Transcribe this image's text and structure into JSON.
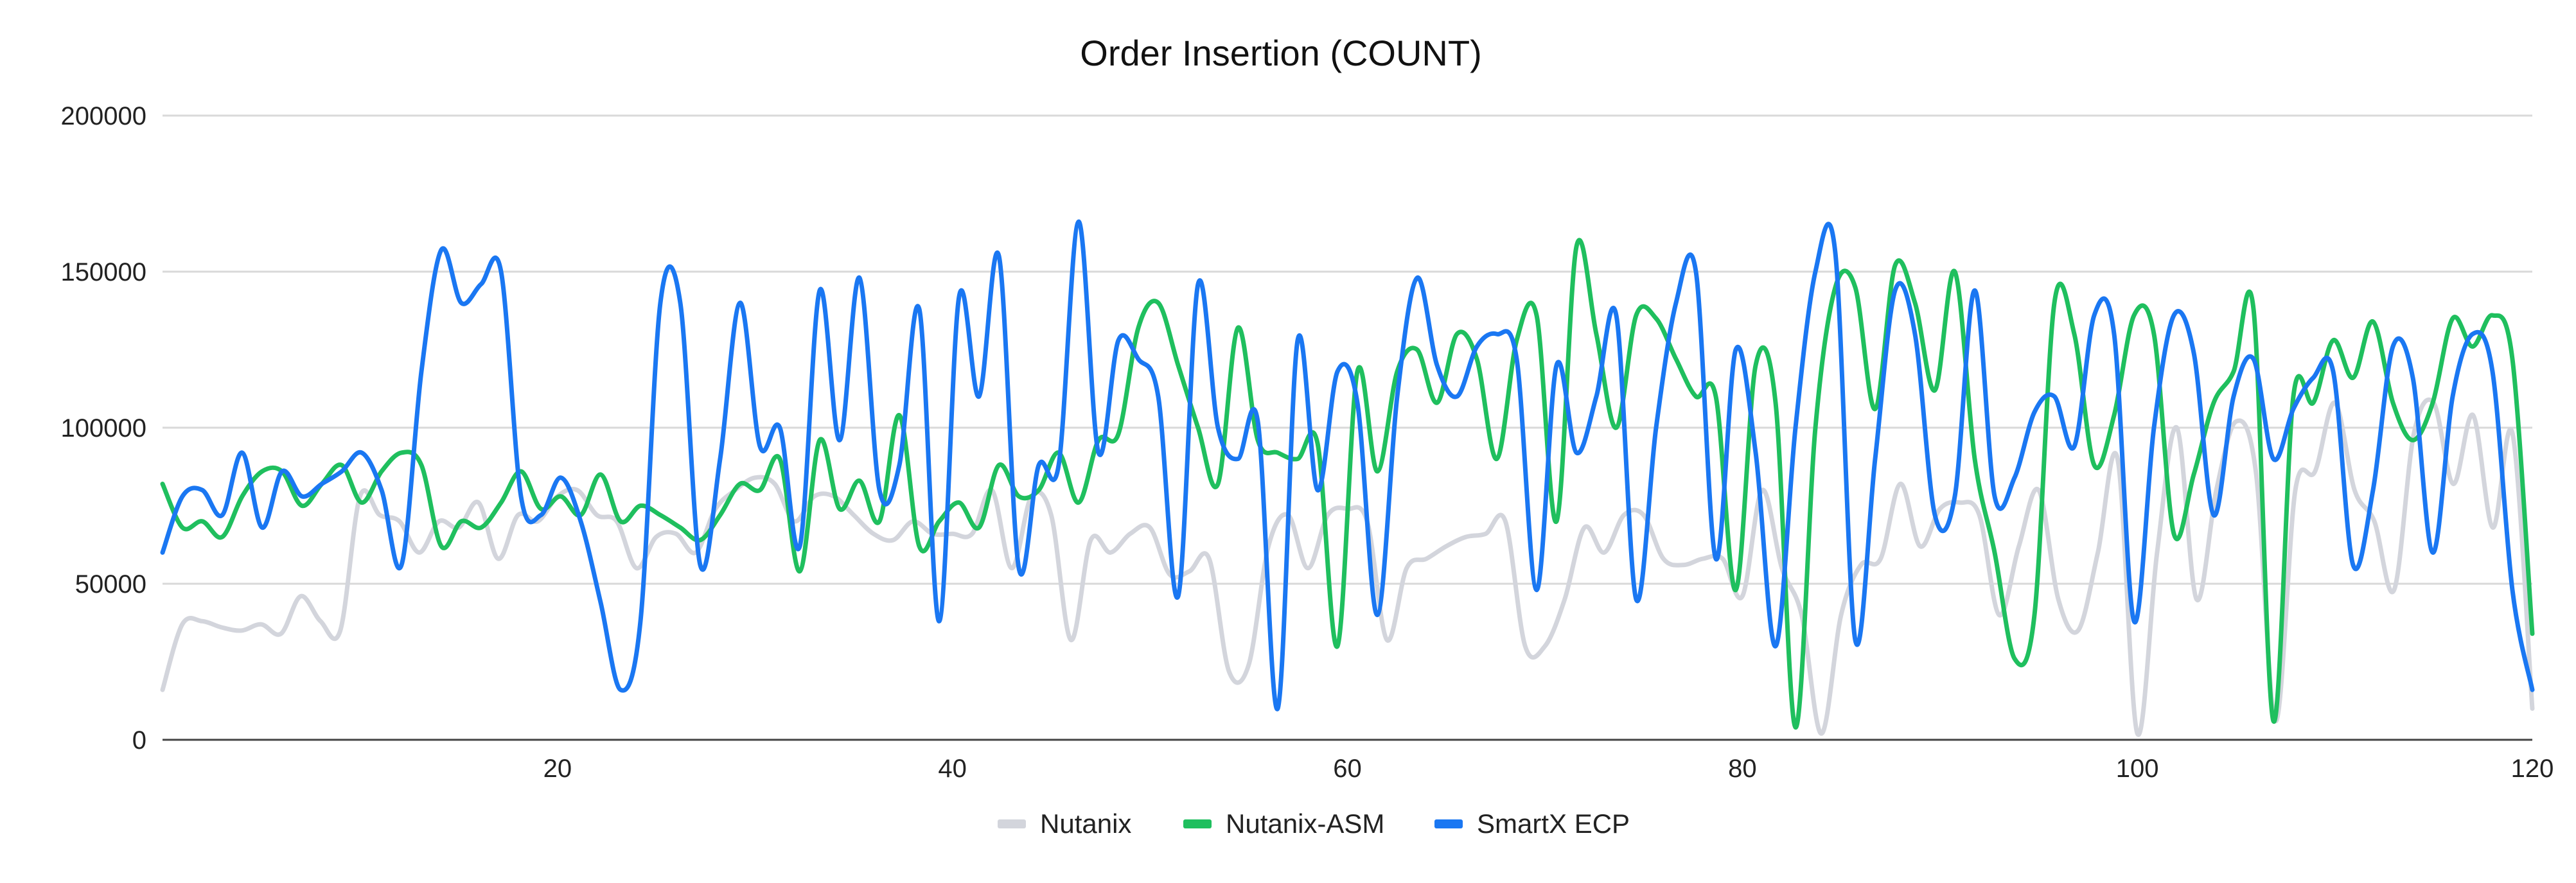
{
  "chart_data": {
    "type": "line",
    "title": "Order Insertion (COUNT)",
    "xlabel": "",
    "ylabel": "",
    "xlim": [
      0,
      120
    ],
    "ylim": [
      0,
      200000
    ],
    "x_ticks": [
      20,
      40,
      60,
      80,
      100,
      120
    ],
    "y_ticks": [
      0,
      50000,
      100000,
      150000,
      200000
    ],
    "grid": true,
    "legend_position": "bottom",
    "series": [
      {
        "name": "Nutanix",
        "color": "#d3d5dc",
        "values": [
          16000,
          37000,
          38000,
          36000,
          35000,
          37000,
          34000,
          46000,
          38000,
          35000,
          78000,
          72000,
          70000,
          60000,
          70000,
          68000,
          76000,
          58000,
          72000,
          70000,
          78000,
          80000,
          72000,
          70000,
          55000,
          65000,
          66000,
          60000,
          74000,
          80000,
          84000,
          82000,
          70000,
          78000,
          78000,
          72000,
          66000,
          64000,
          70000,
          66000,
          66000,
          66000,
          80000,
          55000,
          78000,
          72000,
          32000,
          64000,
          60000,
          66000,
          68000,
          53000,
          54000,
          58000,
          22000,
          24000,
          62000,
          72000,
          55000,
          72000,
          74000,
          70000,
          32000,
          55000,
          58000,
          62000,
          65000,
          66000,
          70000,
          30000,
          30000,
          45000,
          68000,
          60000,
          72000,
          72000,
          58000,
          56000,
          58000,
          58000,
          46000,
          80000,
          55000,
          40000,
          2000,
          40000,
          56000,
          58000,
          82000,
          62000,
          74000,
          76000,
          72000,
          40000,
          62000,
          80000,
          45000,
          35000,
          60000,
          90000,
          2000,
          60000,
          100000,
          45000,
          80000,
          102000,
          86000,
          6000,
          80000,
          86000,
          108000,
          80000,
          70000,
          48000,
          98000,
          108000,
          82000,
          104000,
          68000,
          98000,
          10000
        ]
      },
      {
        "name": "Nutanix-ASM",
        "color": "#1fbf5e",
        "values": [
          82000,
          68000,
          70000,
          65000,
          78000,
          86000,
          86000,
          75000,
          82000,
          88000,
          76000,
          86000,
          92000,
          88000,
          62000,
          70000,
          68000,
          76000,
          86000,
          74000,
          78000,
          72000,
          85000,
          70000,
          75000,
          72000,
          68000,
          64000,
          72000,
          82000,
          80000,
          90000,
          54000,
          96000,
          74000,
          83000,
          70000,
          104000,
          62000,
          70000,
          76000,
          68000,
          88000,
          78000,
          80000,
          92000,
          76000,
          96000,
          98000,
          132000,
          140000,
          120000,
          100000,
          82000,
          132000,
          96000,
          92000,
          90000,
          95000,
          30000,
          118000,
          86000,
          118000,
          125000,
          108000,
          130000,
          122000,
          90000,
          128000,
          136000,
          70000,
          158000,
          130000,
          100000,
          136000,
          135000,
          122000,
          110000,
          110000,
          48000,
          120000,
          108000,
          4000,
          100000,
          145000,
          145000,
          106000,
          152000,
          140000,
          112000,
          150000,
          90000,
          60000,
          26000,
          40000,
          140000,
          130000,
          88000,
          104000,
          136000,
          130000,
          66000,
          85000,
          108000,
          118000,
          138000,
          6000,
          110000,
          108000,
          128000,
          116000,
          134000,
          108000,
          96000,
          108000,
          135000,
          126000,
          136000,
          122000,
          34000
        ]
      },
      {
        "name": "SmartX ECP",
        "color": "#1a77f2",
        "values": [
          60000,
          78000,
          80000,
          72000,
          92000,
          68000,
          86000,
          78000,
          82000,
          86000,
          92000,
          80000,
          56000,
          118000,
          157000,
          140000,
          146000,
          150000,
          78000,
          72000,
          84000,
          70000,
          44000,
          16000,
          38000,
          140000,
          140000,
          56000,
          90000,
          140000,
          94000,
          100000,
          62000,
          144000,
          96000,
          148000,
          80000,
          88000,
          138000,
          38000,
          142000,
          110000,
          155000,
          55000,
          88000,
          88000,
          166000,
          92000,
          128000,
          122000,
          110000,
          46000,
          146000,
          100000,
          90000,
          102000,
          10000,
          128000,
          80000,
          118000,
          108000,
          40000,
          110000,
          148000,
          120000,
          110000,
          126000,
          130000,
          122000,
          48000,
          120000,
          92000,
          110000,
          136000,
          45000,
          100000,
          140000,
          150000,
          58000,
          125000,
          92000,
          30000,
          100000,
          150000,
          156000,
          32000,
          90000,
          144000,
          130000,
          72000,
          78000,
          144000,
          78000,
          84000,
          105000,
          110000,
          94000,
          136000,
          130000,
          38000,
          100000,
          136000,
          124000,
          72000,
          110000,
          122000,
          90000,
          106000,
          116000,
          118000,
          56000,
          80000,
          126000,
          116000,
          60000,
          110000,
          130000,
          118000,
          48000,
          16000
        ]
      }
    ]
  }
}
